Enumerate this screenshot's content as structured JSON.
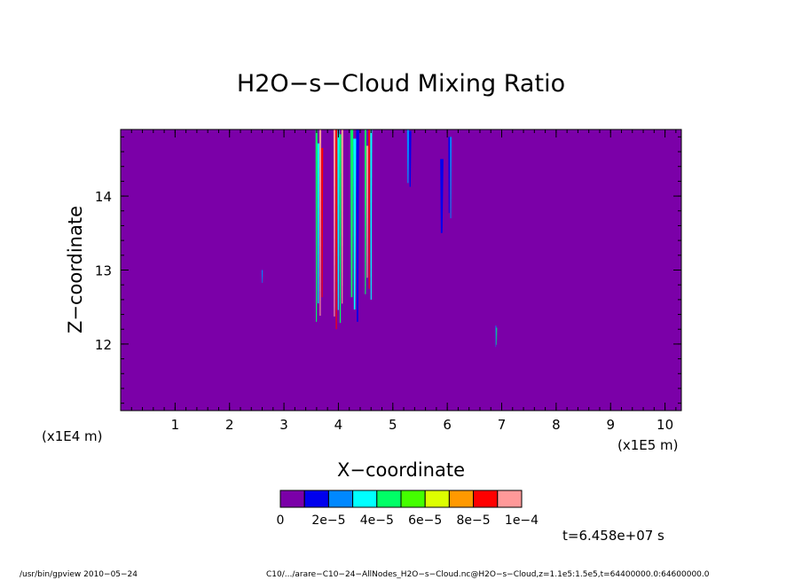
{
  "chart_data": {
    "type": "heatmap",
    "title": "H2O−s−Cloud Mixing Ratio",
    "xlabel": "X−coordinate",
    "ylabel": "Z−coordinate",
    "x_unit_left": "(x1E4 m)",
    "x_unit_right": "(x1E5 m)",
    "xlim": [
      0,
      10.3
    ],
    "ylim": [
      11.1,
      14.9
    ],
    "x_ticks": [
      1,
      2,
      3,
      4,
      5,
      6,
      7,
      8,
      9,
      10
    ],
    "x_tick_labels": [
      "1",
      "2",
      "3",
      "4",
      "5",
      "6",
      "7",
      "8",
      "9",
      "10"
    ],
    "y_ticks": [
      12,
      13,
      14
    ],
    "y_tick_labels": [
      "12",
      "13",
      "14"
    ],
    "background_color": "#7b00a8",
    "colorbar": {
      "colors": [
        "#7b00a8",
        "#0000ee",
        "#0088ff",
        "#00ffff",
        "#00ff66",
        "#44ff00",
        "#ddff00",
        "#ff9900",
        "#ff0000",
        "#ff9999"
      ],
      "tick_labels": [
        "0",
        "2e−5",
        "4e−5",
        "6e−5",
        "8e−5",
        "1e−4"
      ]
    },
    "features": [
      {
        "x": 3.65,
        "z0": 12.3,
        "z1": 14.9,
        "w": 0.14,
        "levels": [
          4,
          3,
          9,
          8
        ]
      },
      {
        "x": 4.0,
        "z0": 12.2,
        "z1": 14.9,
        "w": 0.18,
        "levels": [
          9,
          8,
          3,
          4,
          9
        ]
      },
      {
        "x": 4.3,
        "z0": 12.3,
        "z1": 14.9,
        "w": 0.16,
        "levels": [
          4,
          3,
          1
        ]
      },
      {
        "x": 4.55,
        "z0": 12.6,
        "z1": 14.9,
        "w": 0.14,
        "levels": [
          4,
          9,
          8,
          3
        ]
      },
      {
        "x": 5.3,
        "z0": 14.1,
        "z1": 14.9,
        "w": 0.08,
        "levels": [
          2,
          1
        ]
      },
      {
        "x": 5.9,
        "z0": 13.5,
        "z1": 14.5,
        "w": 0.06,
        "levels": [
          1
        ]
      },
      {
        "x": 6.05,
        "z0": 13.7,
        "z1": 14.8,
        "w": 0.06,
        "levels": [
          1,
          2
        ]
      },
      {
        "x": 2.6,
        "z0": 12.8,
        "z1": 13.0,
        "w": 0.02,
        "levels": [
          2
        ]
      },
      {
        "x": 6.9,
        "z0": 11.95,
        "z1": 12.25,
        "w": 0.03,
        "levels": [
          2,
          4
        ]
      }
    ]
  },
  "annotation": {
    "time": "t=6.458e+07 s",
    "program": "/usr/bin/gpview  2010−05−24",
    "source": "C10/.../arare−C10−24−AllNodes_H2O−s−Cloud.nc@H2O−s−Cloud,z=1.1e5:1.5e5,t=64400000.0:64600000.0"
  }
}
